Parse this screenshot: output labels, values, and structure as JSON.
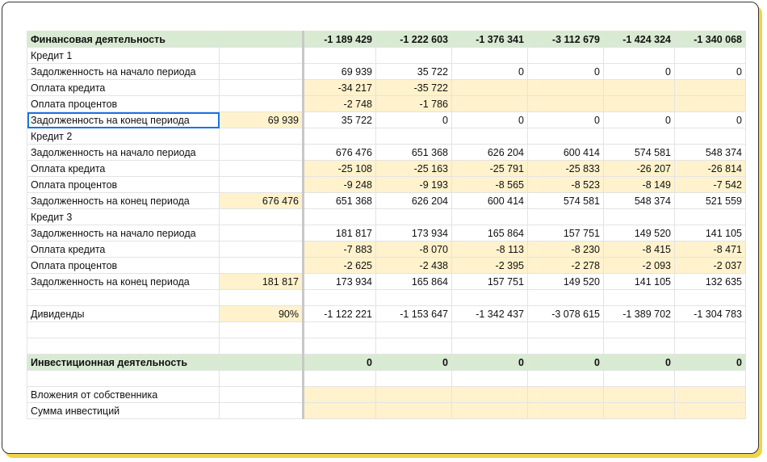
{
  "colors": {
    "section_bg": "#d9ead3",
    "highlight_bg": "#fff2cc",
    "selection_border": "#1a73e8",
    "frame_shadow": "#f0d44a"
  },
  "sheet": {
    "fin_header": {
      "label": "Финансовая деятельность",
      "values": [
        "-1 189 429",
        "-1 222 603",
        "-1 376 341",
        "-3 112 679",
        "-1 424 324",
        "-1 340 068"
      ]
    },
    "credits": [
      {
        "title": "Кредит 1",
        "start": {
          "label": "Задолженность на начало периода",
          "values": [
            "69 939",
            "35 722",
            "0",
            "0",
            "0",
            "0"
          ]
        },
        "pay": {
          "label": "Оплата кредита",
          "values": [
            "-34 217",
            "-35 722",
            "",
            "",
            "",
            ""
          ]
        },
        "interest": {
          "label": "Оплата процентов",
          "values": [
            "-2 748",
            "-1 786",
            "",
            "",
            "",
            ""
          ]
        },
        "end": {
          "label": "Задолженность на конец периода",
          "initial": "69 939",
          "values": [
            "35 722",
            "0",
            "0",
            "0",
            "0",
            "0"
          ]
        }
      },
      {
        "title": "Кредит 2",
        "start": {
          "label": "Задолженность на начало периода",
          "values": [
            "676 476",
            "651 368",
            "626 204",
            "600 414",
            "574 581",
            "548 374"
          ]
        },
        "pay": {
          "label": "Оплата кредита",
          "values": [
            "-25 108",
            "-25 163",
            "-25 791",
            "-25 833",
            "-26 207",
            "-26 814"
          ]
        },
        "interest": {
          "label": "Оплата процентов",
          "values": [
            "-9 248",
            "-9 193",
            "-8 565",
            "-8 523",
            "-8 149",
            "-7 542"
          ]
        },
        "end": {
          "label": "Задолженность на конец периода",
          "initial": "676 476",
          "values": [
            "651 368",
            "626 204",
            "600 414",
            "574 581",
            "548 374",
            "521 559"
          ]
        }
      },
      {
        "title": "Кредит 3",
        "start": {
          "label": "Задолженность на начало периода",
          "values": [
            "181 817",
            "173 934",
            "165 864",
            "157 751",
            "149 520",
            "141 105"
          ]
        },
        "pay": {
          "label": "Оплата кредита",
          "values": [
            "-7 883",
            "-8 070",
            "-8 113",
            "-8 230",
            "-8 415",
            "-8 471"
          ]
        },
        "interest": {
          "label": "Оплата процентов",
          "values": [
            "-2 625",
            "-2 438",
            "-2 395",
            "-2 278",
            "-2 093",
            "-2 037"
          ]
        },
        "end": {
          "label": "Задолженность на конец периода",
          "initial": "181 817",
          "values": [
            "173 934",
            "165 864",
            "157 751",
            "149 520",
            "141 105",
            "132 635"
          ]
        }
      }
    ],
    "dividends": {
      "label": "Дивиденды",
      "rate": "90%",
      "values": [
        "-1 122 221",
        "-1 153 647",
        "-1 342 437",
        "-3 078 615",
        "-1 389 702",
        "-1 304 783"
      ]
    },
    "inv_header": {
      "label": "Инвестиционная деятельность",
      "values": [
        "0",
        "0",
        "0",
        "0",
        "0",
        "0"
      ]
    },
    "owner_contrib": {
      "label": "Вложения от собственника"
    },
    "inv_sum": {
      "label": "Сумма инвестиций"
    }
  }
}
